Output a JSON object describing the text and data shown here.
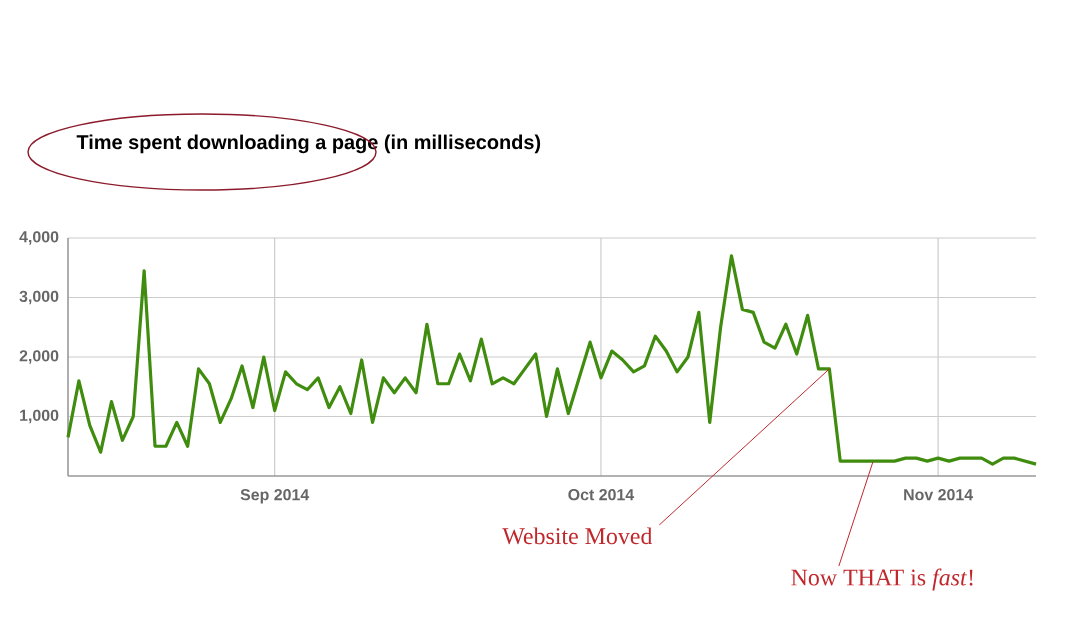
{
  "chart_data": {
    "type": "line",
    "title": "Time spent downloading a page (in milliseconds)",
    "x": [
      "2014-08-13",
      "2014-08-14",
      "2014-08-15",
      "2014-08-16",
      "2014-08-17",
      "2014-08-18",
      "2014-08-19",
      "2014-08-20",
      "2014-08-21",
      "2014-08-22",
      "2014-08-23",
      "2014-08-24",
      "2014-08-25",
      "2014-08-26",
      "2014-08-27",
      "2014-08-28",
      "2014-08-29",
      "2014-08-30",
      "2014-08-31",
      "2014-09-01",
      "2014-09-02",
      "2014-09-03",
      "2014-09-04",
      "2014-09-05",
      "2014-09-06",
      "2014-09-07",
      "2014-09-08",
      "2014-09-09",
      "2014-09-10",
      "2014-09-11",
      "2014-09-12",
      "2014-09-13",
      "2014-09-14",
      "2014-09-15",
      "2014-09-16",
      "2014-09-17",
      "2014-09-18",
      "2014-09-19",
      "2014-09-20",
      "2014-09-21",
      "2014-09-22",
      "2014-09-23",
      "2014-09-24",
      "2014-09-25",
      "2014-09-26",
      "2014-09-27",
      "2014-09-28",
      "2014-09-29",
      "2014-09-30",
      "2014-10-01",
      "2014-10-02",
      "2014-10-03",
      "2014-10-04",
      "2014-10-05",
      "2014-10-06",
      "2014-10-07",
      "2014-10-08",
      "2014-10-09",
      "2014-10-10",
      "2014-10-11",
      "2014-10-12",
      "2014-10-13",
      "2014-10-14",
      "2014-10-15",
      "2014-10-16",
      "2014-10-17",
      "2014-10-18",
      "2014-10-19",
      "2014-10-20",
      "2014-10-21",
      "2014-10-22",
      "2014-10-23",
      "2014-10-24",
      "2014-10-25",
      "2014-10-26",
      "2014-10-27",
      "2014-10-28",
      "2014-10-29",
      "2014-10-30",
      "2014-10-31",
      "2014-11-01",
      "2014-11-02",
      "2014-11-03",
      "2014-11-04",
      "2014-11-05",
      "2014-11-06",
      "2014-11-07",
      "2014-11-08",
      "2014-11-09",
      "2014-11-10"
    ],
    "series": [
      {
        "color": "#3f8c0e",
        "values": [
          650,
          1600,
          850,
          400,
          1250,
          600,
          1000,
          3450,
          500,
          500,
          900,
          500,
          1800,
          1550,
          900,
          1300,
          1850,
          1150,
          2000,
          1100,
          1750,
          1550,
          1450,
          1650,
          1150,
          1500,
          1050,
          1950,
          900,
          1650,
          1400,
          1650,
          1400,
          2550,
          1550,
          1550,
          2050,
          1600,
          2300,
          1550,
          1650,
          1550,
          1800,
          2050,
          1000,
          1800,
          1050,
          1650,
          2250,
          1650,
          2100,
          1950,
          1750,
          1850,
          2350,
          2100,
          1750,
          2000,
          2750,
          900,
          2500,
          3700,
          2800,
          2750,
          2250,
          2150,
          2550,
          2050,
          2700,
          1800,
          1800,
          250,
          250,
          250,
          250,
          250,
          250,
          300,
          300,
          250,
          300,
          250,
          300,
          300,
          300,
          200,
          300,
          300,
          250,
          200
        ]
      }
    ],
    "xlim": [
      "2014-08-13",
      "2014-11-10"
    ],
    "xticks": [
      {
        "value": "2014-09-01",
        "label": "Sep 2014"
      },
      {
        "value": "2014-10-01",
        "label": "Oct 2014"
      },
      {
        "value": "2014-11-01",
        "label": "Nov 2014"
      }
    ],
    "ylim": [
      0,
      4000
    ],
    "yticks": [
      {
        "value": 1000,
        "label": "1,000"
      },
      {
        "value": 2000,
        "label": "2,000"
      },
      {
        "value": 3000,
        "label": "3,000"
      },
      {
        "value": 4000,
        "label": "4,000"
      }
    ],
    "grid": true,
    "marker": "none",
    "line_style": "solid",
    "annotations": [
      {
        "text": "Website Moved",
        "x": "2014-10-22",
        "y": 1800
      },
      {
        "text": "Now THAT is *fast*!",
        "x": "2014-10-26",
        "y": 235
      }
    ]
  }
}
